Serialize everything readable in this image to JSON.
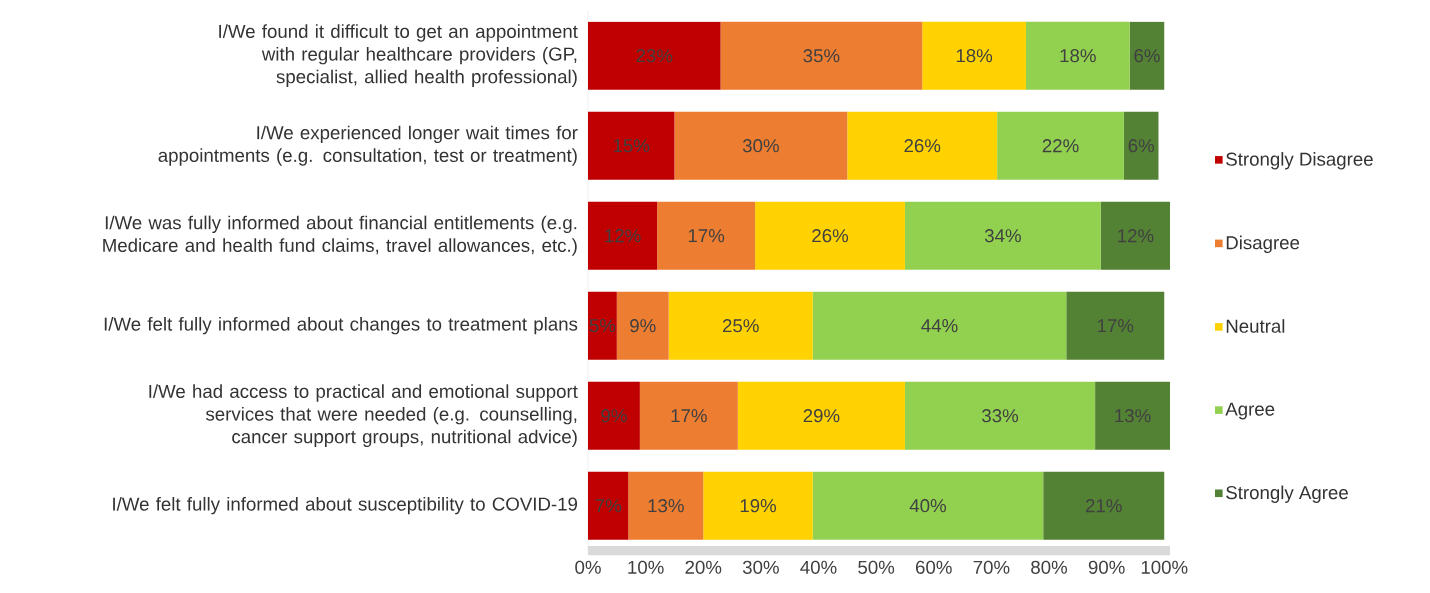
{
  "chart_data": {
    "type": "bar",
    "orientation": "horizontal",
    "stacked": true,
    "categories": [
      "I/We found it difficult to get an appointment with regular healthcare providers (GP, specialist, allied health professional)",
      "I/We experienced longer wait times for appointments (e.g. consultation, test or treatment)",
      "I/We was fully informed about financial entitlements (e.g. Medicare and health fund claims, travel allowances, etc.)",
      "I/We felt fully informed about changes to treatment plans",
      "I/We had access to practical and emotional support services that were needed (e.g. counselling, cancer support groups, nutritional advice)",
      "I/We felt fully informed about susceptibility to COVID-19"
    ],
    "series": [
      {
        "name": "Strongly Disagree",
        "color": "#c00000",
        "values": [
          23,
          15,
          12,
          5,
          9,
          7
        ],
        "value_labels": [
          "23%",
          "15%",
          "12%",
          "5%",
          "9%",
          "7%"
        ]
      },
      {
        "name": "Disagree",
        "color": "#ed7d31",
        "values": [
          35,
          30,
          17,
          9,
          17,
          13
        ],
        "value_labels": [
          "35%",
          "30%",
          "17%",
          "9%",
          "17%",
          "13%"
        ]
      },
      {
        "name": "Neutral",
        "color": "#ffd200",
        "values": [
          18,
          26,
          26,
          25,
          29,
          19
        ],
        "value_labels": [
          "18%",
          "26%",
          "26%",
          "25%",
          "29%",
          "19%"
        ]
      },
      {
        "name": "Agree",
        "color": "#92d050",
        "values": [
          18,
          22,
          34,
          44,
          33,
          40
        ],
        "value_labels": [
          "18%",
          "22%",
          "34%",
          "44%",
          "33%",
          "40%"
        ]
      },
      {
        "name": "Strongly Agree",
        "color": "#548235",
        "values": [
          6,
          6,
          12,
          17,
          13,
          21
        ],
        "value_labels": [
          "6%",
          "6%",
          "12%",
          "17%",
          "13%",
          "21%"
        ]
      }
    ],
    "xlim": [
      0,
      101
    ],
    "xticks": [
      {
        "value": 0,
        "label": "0%"
      },
      {
        "value": 10,
        "label": "10%"
      },
      {
        "value": 20,
        "label": "20%"
      },
      {
        "value": 30,
        "label": "30%"
      },
      {
        "value": 40,
        "label": "40%"
      },
      {
        "value": 50,
        "label": "50%"
      },
      {
        "value": 60,
        "label": "60%"
      },
      {
        "value": 70,
        "label": "70%"
      },
      {
        "value": 80,
        "label": "80%"
      },
      {
        "value": 90,
        "label": "90%"
      },
      {
        "value": 100,
        "label": "100%"
      }
    ],
    "legend": "right"
  }
}
